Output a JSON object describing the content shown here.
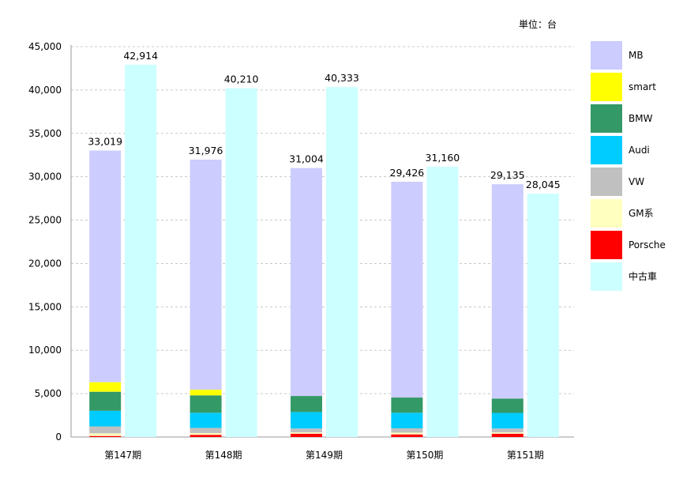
{
  "unit_label": "単位：台",
  "chart_data": {
    "type": "bar",
    "categories": [
      "第147期",
      "第148期",
      "第149期",
      "第150期",
      "第151期"
    ],
    "ylim": [
      0,
      45000
    ],
    "yticks": [
      "0",
      "5,000",
      "10,000",
      "15,000",
      "20,000",
      "25,000",
      "30,000",
      "35,000",
      "40,000",
      "45,000"
    ],
    "grid": true,
    "legend_position": "right",
    "new_car_stack": {
      "series": [
        {
          "name": "Porsche",
          "color": "#ff0000",
          "values": [
            120,
            250,
            380,
            300,
            380
          ]
        },
        {
          "name": "GM系",
          "color": "#ffffc0",
          "values": [
            300,
            200,
            150,
            200,
            150
          ]
        },
        {
          "name": "VW",
          "color": "#c0c0c0",
          "values": [
            800,
            600,
            450,
            500,
            450
          ]
        },
        {
          "name": "Audi",
          "color": "#00ccff",
          "values": [
            1800,
            1750,
            1900,
            1800,
            1800
          ]
        },
        {
          "name": "BMW",
          "color": "#339966",
          "values": [
            2200,
            2000,
            1850,
            1750,
            1650
          ]
        },
        {
          "name": "smart",
          "color": "#ffff00",
          "values": [
            1100,
            650,
            0,
            0,
            0
          ]
        },
        {
          "name": "MB",
          "color": "#ccccff",
          "values": [
            26699,
            26526,
            26274,
            24876,
            24705
          ]
        }
      ],
      "totals": [
        33019,
        31976,
        31004,
        29426,
        29135
      ],
      "total_labels": [
        "33,019",
        "31,976",
        "31,004",
        "29,426",
        "29,135"
      ]
    },
    "used_car": {
      "name": "中古車",
      "color": "#ccffff",
      "values": [
        42914,
        40210,
        40333,
        31160,
        28045
      ],
      "labels": [
        "42,914",
        "40,210",
        "40,333",
        "31,160",
        "28,045"
      ]
    },
    "legend": [
      {
        "label": "MB",
        "color": "#ccccff"
      },
      {
        "label": "smart",
        "color": "#ffff00"
      },
      {
        "label": "BMW",
        "color": "#339966"
      },
      {
        "label": "Audi",
        "color": "#00ccff"
      },
      {
        "label": "VW",
        "color": "#c0c0c0"
      },
      {
        "label": "GM系",
        "color": "#ffffc0"
      },
      {
        "label": "Porsche",
        "color": "#ff0000"
      },
      {
        "label": "中古車",
        "color": "#ccffff"
      }
    ]
  }
}
